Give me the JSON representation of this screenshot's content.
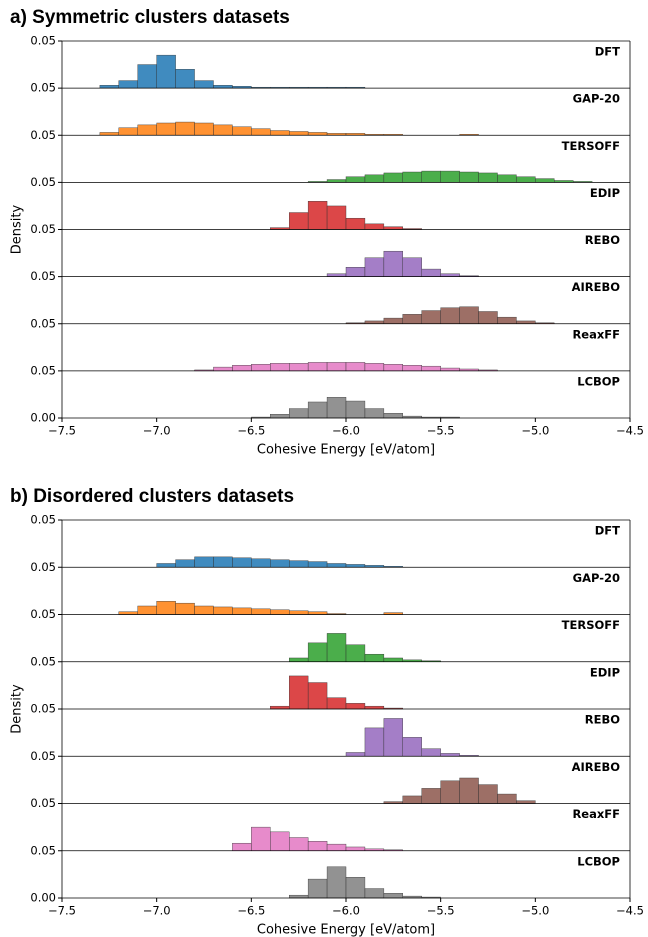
{
  "chart_data": [
    {
      "type": "histogram",
      "title": "a) Symmetric clusters datasets",
      "xlabel": "Cohesive Energy [eV/atom]",
      "ylabel": "Density",
      "bins": [
        -7.5,
        -7.4,
        -7.3,
        -7.2,
        -7.1,
        -7.0,
        -6.9,
        -6.8,
        -6.7,
        -6.6,
        -6.5,
        -6.4,
        -6.3,
        -6.2,
        -6.1,
        -6.0,
        -5.9,
        -5.8,
        -5.7,
        -5.6,
        -5.5,
        -5.4,
        -5.3,
        -5.2,
        -5.1,
        -5.0,
        -4.9,
        -4.8,
        -4.7,
        -4.6,
        -4.5
      ],
      "xlim": [
        -7.5,
        -4.5
      ],
      "xticks": [
        {
          "value": -7.5,
          "label": "−7.5"
        },
        {
          "value": -7,
          "label": "−7.0"
        },
        {
          "value": -6.5,
          "label": "−6.5"
        },
        {
          "value": -6,
          "label": "−6.0"
        },
        {
          "value": -5.5,
          "label": "−5.5"
        },
        {
          "value": -5,
          "label": "−5.0"
        },
        {
          "value": -4.5,
          "label": "−4.5"
        }
      ],
      "ylim": [
        0,
        0.05
      ],
      "yticks": [
        {
          "value": 0,
          "label": "0.00"
        },
        0.05
      ],
      "series": [
        {
          "name": "DFT",
          "color": "#1f77b4",
          "values": [
            0,
            0,
            0.003,
            0.008,
            0.025,
            0.035,
            0.02,
            0.008,
            0.003,
            0.002,
            0.001,
            0.001,
            0.001,
            0.001,
            0.001,
            0.001,
            0,
            0,
            0,
            0,
            0,
            0,
            0,
            0,
            0,
            0,
            0,
            0,
            0,
            0
          ]
        },
        {
          "name": "GAP-20",
          "color": "#ff7f0e",
          "values": [
            0,
            0,
            0.003,
            0.008,
            0.011,
            0.013,
            0.014,
            0.013,
            0.011,
            0.009,
            0.007,
            0.005,
            0.004,
            0.003,
            0.002,
            0.002,
            0.001,
            0.001,
            0,
            0,
            0,
            0.001,
            0,
            0,
            0,
            0,
            0,
            0,
            0,
            0
          ]
        },
        {
          "name": "TERSOFF",
          "color": "#2ca02c",
          "values": [
            0,
            0,
            0,
            0,
            0,
            0,
            0,
            0,
            0,
            0,
            0,
            0,
            0,
            0.001,
            0.003,
            0.006,
            0.008,
            0.01,
            0.011,
            0.012,
            0.012,
            0.011,
            0.01,
            0.008,
            0.006,
            0.004,
            0.002,
            0.001,
            0,
            0
          ]
        },
        {
          "name": "EDIP",
          "color": "#d62728",
          "values": [
            0,
            0,
            0,
            0,
            0,
            0,
            0,
            0,
            0,
            0,
            0,
            0.002,
            0.018,
            0.03,
            0.025,
            0.012,
            0.006,
            0.003,
            0.001,
            0,
            0,
            0,
            0,
            0,
            0,
            0,
            0,
            0,
            0,
            0
          ]
        },
        {
          "name": "REBO",
          "color": "#9467bd",
          "values": [
            0,
            0,
            0,
            0,
            0,
            0,
            0,
            0,
            0,
            0,
            0,
            0,
            0,
            0,
            0.003,
            0.01,
            0.02,
            0.027,
            0.02,
            0.008,
            0.003,
            0.001,
            0,
            0,
            0,
            0,
            0,
            0,
            0,
            0
          ]
        },
        {
          "name": "AIREBO",
          "color": "#8c564b",
          "values": [
            0,
            0,
            0,
            0,
            0,
            0,
            0,
            0,
            0,
            0,
            0,
            0,
            0,
            0,
            0,
            0.001,
            0.003,
            0.006,
            0.01,
            0.014,
            0.017,
            0.018,
            0.013,
            0.007,
            0.003,
            0.001,
            0,
            0,
            0,
            0
          ]
        },
        {
          "name": "ReaxFF",
          "color": "#e377c2",
          "values": [
            0,
            0,
            0,
            0,
            0,
            0,
            0,
            0.001,
            0.004,
            0.006,
            0.007,
            0.008,
            0.008,
            0.009,
            0.009,
            0.009,
            0.008,
            0.007,
            0.006,
            0.005,
            0.003,
            0.002,
            0.001,
            0,
            0,
            0,
            0,
            0,
            0,
            0
          ]
        },
        {
          "name": "LCBOP",
          "color": "#7f7f7f",
          "values": [
            0,
            0,
            0,
            0,
            0,
            0,
            0,
            0,
            0,
            0,
            0.001,
            0.004,
            0.01,
            0.017,
            0.022,
            0.018,
            0.01,
            0.005,
            0.002,
            0.001,
            0.001,
            0,
            0,
            0,
            0,
            0,
            0,
            0,
            0,
            0
          ]
        }
      ]
    },
    {
      "type": "histogram",
      "title": "b) Disordered clusters datasets",
      "xlabel": "Cohesive Energy [eV/atom]",
      "ylabel": "Density",
      "bins": [
        -7.5,
        -7.4,
        -7.3,
        -7.2,
        -7.1,
        -7.0,
        -6.9,
        -6.8,
        -6.7,
        -6.6,
        -6.5,
        -6.4,
        -6.3,
        -6.2,
        -6.1,
        -6.0,
        -5.9,
        -5.8,
        -5.7,
        -5.6,
        -5.5,
        -5.4,
        -5.3,
        -5.2,
        -5.1,
        -5.0,
        -4.9,
        -4.8,
        -4.7,
        -4.6,
        -4.5
      ],
      "xlim": [
        -7.5,
        -4.5
      ],
      "xticks": [
        {
          "value": -7.5,
          "label": "−7.5"
        },
        {
          "value": -7,
          "label": "−7.0"
        },
        {
          "value": -6.5,
          "label": "−6.5"
        },
        {
          "value": -6,
          "label": "−6.0"
        },
        {
          "value": -5.5,
          "label": "−5.5"
        },
        {
          "value": -5,
          "label": "−5.0"
        },
        {
          "value": -4.5,
          "label": "−4.5"
        }
      ],
      "ylim": [
        0,
        0.05
      ],
      "yticks": [
        {
          "value": 0,
          "label": "0.00"
        },
        0.05
      ],
      "series": [
        {
          "name": "DFT",
          "color": "#1f77b4",
          "values": [
            0,
            0,
            0,
            0,
            0,
            0.004,
            0.008,
            0.011,
            0.011,
            0.01,
            0.009,
            0.008,
            0.007,
            0.006,
            0.004,
            0.003,
            0.002,
            0.001,
            0,
            0,
            0,
            0,
            0,
            0,
            0,
            0,
            0,
            0,
            0,
            0
          ]
        },
        {
          "name": "GAP-20",
          "color": "#ff7f0e",
          "values": [
            0,
            0,
            0,
            0.003,
            0.009,
            0.014,
            0.012,
            0.009,
            0.008,
            0.007,
            0.006,
            0.005,
            0.004,
            0.003,
            0.001,
            0,
            0,
            0.002,
            0,
            0,
            0,
            0,
            0,
            0,
            0,
            0,
            0,
            0,
            0,
            0
          ]
        },
        {
          "name": "TERSOFF",
          "color": "#2ca02c",
          "values": [
            0,
            0,
            0,
            0,
            0,
            0,
            0,
            0,
            0,
            0,
            0,
            0,
            0.004,
            0.02,
            0.03,
            0.018,
            0.008,
            0.004,
            0.002,
            0.001,
            0,
            0,
            0,
            0,
            0,
            0,
            0,
            0,
            0,
            0
          ]
        },
        {
          "name": "EDIP",
          "color": "#d62728",
          "values": [
            0,
            0,
            0,
            0,
            0,
            0,
            0,
            0,
            0,
            0,
            0,
            0.003,
            0.035,
            0.028,
            0.012,
            0.006,
            0.003,
            0.001,
            0,
            0,
            0,
            0,
            0,
            0,
            0,
            0,
            0,
            0,
            0,
            0
          ]
        },
        {
          "name": "REBO",
          "color": "#9467bd",
          "values": [
            0,
            0,
            0,
            0,
            0,
            0,
            0,
            0,
            0,
            0,
            0,
            0,
            0,
            0,
            0,
            0.004,
            0.03,
            0.04,
            0.02,
            0.008,
            0.003,
            0.001,
            0,
            0,
            0,
            0,
            0,
            0,
            0,
            0
          ]
        },
        {
          "name": "AIREBO",
          "color": "#8c564b",
          "values": [
            0,
            0,
            0,
            0,
            0,
            0,
            0,
            0,
            0,
            0,
            0,
            0,
            0,
            0,
            0,
            0,
            0,
            0.002,
            0.008,
            0.016,
            0.024,
            0.027,
            0.02,
            0.01,
            0.003,
            0,
            0,
            0,
            0,
            0
          ]
        },
        {
          "name": "ReaxFF",
          "color": "#e377c2",
          "values": [
            0,
            0,
            0,
            0,
            0,
            0,
            0,
            0,
            0,
            0.008,
            0.025,
            0.02,
            0.014,
            0.01,
            0.007,
            0.004,
            0.002,
            0.001,
            0,
            0,
            0,
            0,
            0,
            0,
            0,
            0,
            0,
            0,
            0,
            0
          ]
        },
        {
          "name": "LCBOP",
          "color": "#7f7f7f",
          "values": [
            0,
            0,
            0,
            0,
            0,
            0,
            0,
            0,
            0,
            0,
            0,
            0,
            0.003,
            0.02,
            0.033,
            0.022,
            0.01,
            0.005,
            0.002,
            0.001,
            0,
            0,
            0,
            0,
            0,
            0,
            0,
            0,
            0,
            0
          ]
        }
      ]
    }
  ]
}
